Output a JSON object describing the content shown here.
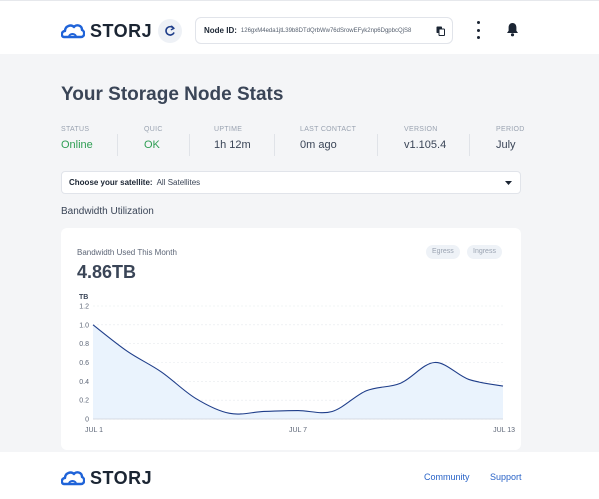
{
  "header": {
    "brand": "STORJ",
    "node_id_label": "Node ID:",
    "node_id_value": "126gxM4eda1jtL39b8DTdQrbWw76dSrowEFyk2np6DgpbcQjS8"
  },
  "page_title": "Your Storage Node Stats",
  "stats": [
    {
      "label": "STATUS",
      "value": "Online"
    },
    {
      "label": "QUIC",
      "value": "OK"
    },
    {
      "label": "UPTIME",
      "value": "1h 12m"
    },
    {
      "label": "LAST CONTACT",
      "value": "0m ago"
    },
    {
      "label": "VERSION",
      "value": "v1.105.4"
    },
    {
      "label": "PERIOD",
      "value": "July"
    }
  ],
  "satellite": {
    "label": "Choose your satellite:",
    "value": "All Satellites"
  },
  "section_title": "Bandwidth Utilization",
  "card": {
    "title": "Bandwidth Used This Month",
    "value": "4.86TB",
    "chips": [
      "Egress",
      "Ingress"
    ]
  },
  "chart_data": {
    "type": "area",
    "ylabel": "TB",
    "ylim": [
      0,
      1.2
    ],
    "yticks": [
      "0",
      "0.2",
      "0.4",
      "0.6",
      "0.8",
      "1.0",
      "1.2"
    ],
    "xticks": [
      "JUL 1",
      "JUL 7",
      "JUL 13"
    ],
    "x": [
      1,
      2,
      3,
      4,
      5,
      6,
      7,
      8,
      9,
      10,
      11,
      12,
      13
    ],
    "values": [
      1.0,
      0.72,
      0.5,
      0.22,
      0.06,
      0.08,
      0.09,
      0.08,
      0.3,
      0.38,
      0.6,
      0.42,
      0.35
    ],
    "grid": true
  },
  "footer": {
    "brand": "STORJ",
    "links": [
      "Community",
      "Support"
    ]
  },
  "colors": {
    "accent": "#2963c7",
    "online": "#2f9e54",
    "line": "#1f3e8a",
    "fill": "#eaf3fd"
  }
}
